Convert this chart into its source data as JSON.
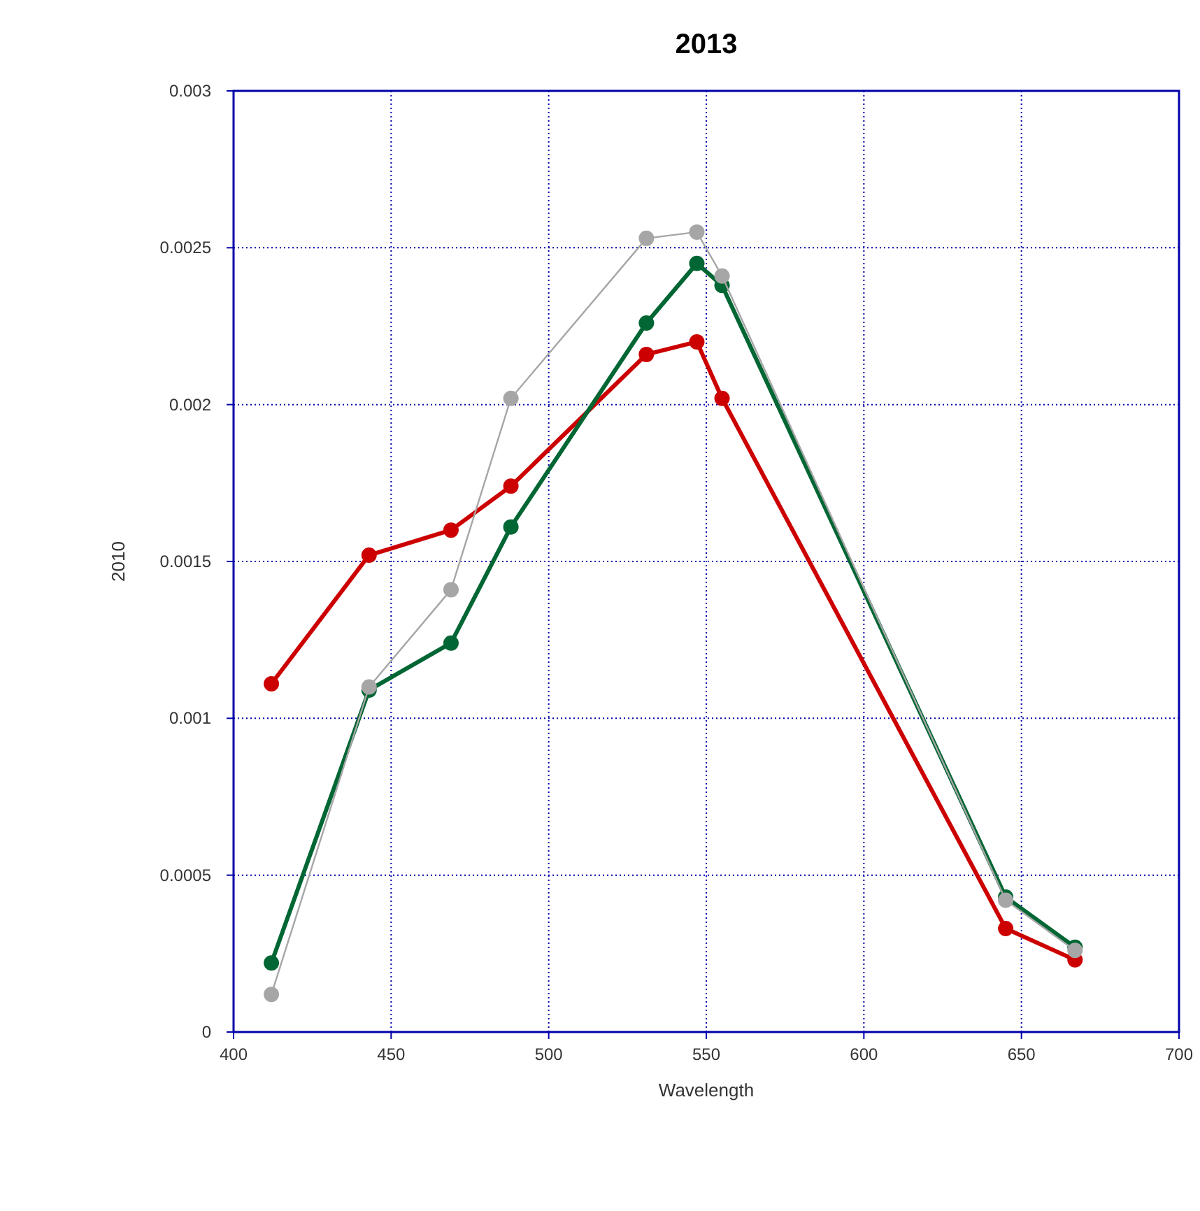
{
  "chart_data": {
    "type": "line",
    "title": "2013",
    "xlabel": "Wavelength",
    "ylabel": "2010",
    "xlim": [
      400,
      700
    ],
    "xticks": [
      400,
      450,
      500,
      550,
      600,
      650,
      700
    ],
    "ylim": [
      0,
      0.003
    ],
    "yticks": [
      0,
      0.0005,
      0.001,
      0.0015,
      0.002,
      0.0025,
      0.003
    ],
    "grid": true,
    "marker": "circle",
    "line_style": "solid",
    "x": [
      412,
      443,
      469,
      488,
      531,
      547,
      555,
      645,
      667
    ],
    "series": [
      {
        "color": "#a6a6a6",
        "values": [
          0.00012,
          0.0011,
          0.00141,
          0.00202,
          0.00253,
          0.00255,
          0.00241,
          0.00042,
          0.00026
        ]
      },
      {
        "color": "#cc0000",
        "values": [
          0.00111,
          0.00152,
          0.0016,
          0.00174,
          0.00216,
          0.0022,
          0.00202,
          0.00033,
          0.00023
        ]
      },
      {
        "color": "#006633",
        "values": [
          0.00022,
          0.00109,
          0.00124,
          0.00161,
          0.00226,
          0.00245,
          0.00238,
          0.00043,
          0.00027
        ]
      }
    ]
  }
}
